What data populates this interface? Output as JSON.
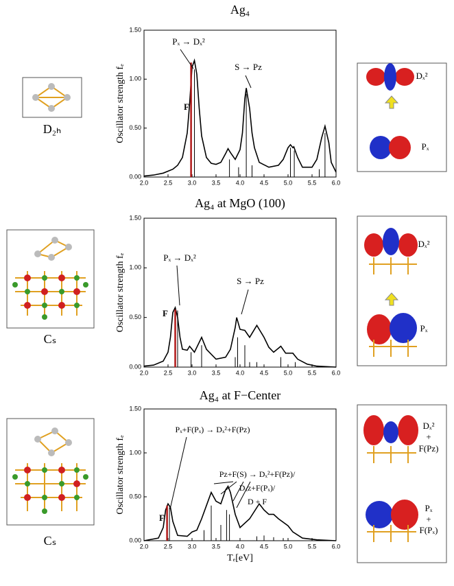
{
  "chart_data": [
    {
      "type": "line",
      "title": "Ag₄",
      "ylabel": "Oscillator strength fₑ",
      "xlim": [
        2,
        6
      ],
      "ylim": [
        0,
        1.5
      ],
      "xticks": [
        {
          "value": 2,
          "label": "2.0"
        },
        {
          "value": 2.5,
          "label": "2.5"
        },
        {
          "value": 3,
          "label": "3.0"
        },
        {
          "value": 3.5,
          "label": "3.5"
        },
        {
          "value": 4,
          "label": "4.0"
        },
        {
          "value": 4.5,
          "label": "4.5"
        },
        {
          "value": 5,
          "label": "5.0"
        },
        {
          "value": 5.5,
          "label": "5.5"
        },
        {
          "value": 6,
          "label": "6.0"
        }
      ],
      "yticks": [
        {
          "value": 0,
          "label": "0.00"
        },
        {
          "value": 0.5,
          "label": "0.50"
        },
        {
          "value": 1,
          "label": "1.00"
        },
        {
          "value": 1.5,
          "label": "1.50"
        }
      ],
      "series": [
        {
          "style": "line",
          "color": "#000000",
          "x": [
            2.0,
            2.2,
            2.4,
            2.6,
            2.7,
            2.8,
            2.9,
            2.95,
            3.0,
            3.05,
            3.1,
            3.15,
            3.2,
            3.3,
            3.4,
            3.5,
            3.6,
            3.7,
            3.75,
            3.8,
            3.9,
            4.0,
            4.05,
            4.1,
            4.13,
            4.2,
            4.25,
            4.3,
            4.4,
            4.6,
            4.8,
            4.9,
            5.0,
            5.05,
            5.1,
            5.12,
            5.2,
            5.3,
            5.5,
            5.6,
            5.7,
            5.77,
            5.85,
            5.9,
            6.0
          ],
          "values": [
            0.01,
            0.02,
            0.04,
            0.08,
            0.12,
            0.2,
            0.45,
            0.75,
            1.12,
            1.19,
            1.05,
            0.7,
            0.42,
            0.2,
            0.14,
            0.13,
            0.15,
            0.24,
            0.29,
            0.25,
            0.18,
            0.28,
            0.45,
            0.8,
            0.91,
            0.7,
            0.45,
            0.3,
            0.15,
            0.1,
            0.12,
            0.18,
            0.3,
            0.33,
            0.3,
            0.31,
            0.2,
            0.1,
            0.1,
            0.18,
            0.4,
            0.52,
            0.35,
            0.15,
            0.05
          ]
        },
        {
          "style": "stick",
          "color": "#b01818",
          "x": [
            2.98
          ],
          "values": [
            1.17
          ]
        },
        {
          "style": "stick",
          "color": "#000000",
          "x": [
            3.05,
            3.78,
            3.97,
            4.13,
            4.25,
            5.05,
            5.13,
            5.65,
            5.77
          ],
          "values": [
            1.1,
            0.18,
            0.1,
            0.85,
            0.12,
            0.3,
            0.27,
            0.08,
            0.45
          ]
        }
      ],
      "annotations": [
        {
          "text": "Pₓ → Dₓ²",
          "color": "#000000"
        },
        {
          "text": "S → Pz",
          "color": "#000000"
        },
        {
          "text": "F",
          "color": "#b01818"
        }
      ]
    },
    {
      "type": "line",
      "title": "Ag₄ at MgO (100)",
      "ylabel": "Oscillator strength fₑ",
      "xlim": [
        2,
        6
      ],
      "ylim": [
        0,
        1.5
      ],
      "xticks": [
        {
          "value": 2,
          "label": "2.0"
        },
        {
          "value": 2.5,
          "label": "2.5"
        },
        {
          "value": 3,
          "label": "3.0"
        },
        {
          "value": 3.5,
          "label": "3.5"
        },
        {
          "value": 4,
          "label": "4.0"
        },
        {
          "value": 4.5,
          "label": "4.5"
        },
        {
          "value": 5,
          "label": "5.0"
        },
        {
          "value": 5.5,
          "label": "5.5"
        },
        {
          "value": 6,
          "label": "6.0"
        }
      ],
      "yticks": [
        {
          "value": 0,
          "label": "0.00"
        },
        {
          "value": 0.5,
          "label": "0.50"
        },
        {
          "value": 1,
          "label": "1.00"
        },
        {
          "value": 1.5,
          "label": "1.50"
        }
      ],
      "series": [
        {
          "style": "line",
          "color": "#000000",
          "x": [
            2.0,
            2.2,
            2.4,
            2.5,
            2.55,
            2.6,
            2.65,
            2.7,
            2.75,
            2.8,
            2.9,
            2.95,
            3.05,
            3.2,
            3.3,
            3.5,
            3.7,
            3.8,
            3.9,
            3.93,
            4.0,
            4.1,
            4.2,
            4.35,
            4.5,
            4.6,
            4.7,
            4.85,
            4.95,
            5.1,
            5.2,
            5.4,
            5.6,
            6.0
          ],
          "values": [
            0.01,
            0.02,
            0.06,
            0.15,
            0.3,
            0.55,
            0.6,
            0.5,
            0.3,
            0.18,
            0.17,
            0.21,
            0.15,
            0.3,
            0.18,
            0.08,
            0.1,
            0.18,
            0.4,
            0.5,
            0.38,
            0.37,
            0.3,
            0.42,
            0.3,
            0.2,
            0.15,
            0.21,
            0.14,
            0.14,
            0.08,
            0.03,
            0.01,
            0.0
          ]
        },
        {
          "style": "stick",
          "color": "#b01818",
          "x": [
            2.65
          ],
          "values": [
            0.58
          ]
        },
        {
          "style": "stick",
          "color": "#000000",
          "x": [
            2.7,
            2.98,
            3.2,
            3.9,
            3.95,
            4.1,
            4.2,
            4.35,
            4.85,
            5.15
          ],
          "values": [
            0.57,
            0.15,
            0.22,
            0.1,
            0.3,
            0.22,
            0.05,
            0.05,
            0.1,
            0.05
          ]
        }
      ],
      "annotations": [
        {
          "text": "Pₓ → Dₓ²",
          "color": "#000000"
        },
        {
          "text": "S → Pz",
          "color": "#000000"
        },
        {
          "text": "F",
          "color": "#b01818"
        }
      ]
    },
    {
      "type": "line",
      "title": "Ag₄ at F−Center",
      "ylabel": "Oscillator strength fₑ",
      "xlabel": "Tₑ[eV]",
      "xlim": [
        2,
        6
      ],
      "ylim": [
        0,
        1.5
      ],
      "xticks": [
        {
          "value": 2,
          "label": "2.0"
        },
        {
          "value": 2.5,
          "label": "2.5"
        },
        {
          "value": 3,
          "label": "3.0"
        },
        {
          "value": 3.5,
          "label": "3.5"
        },
        {
          "value": 4,
          "label": "4.0"
        },
        {
          "value": 4.5,
          "label": "4.5"
        },
        {
          "value": 5,
          "label": "5.0"
        },
        {
          "value": 5.5,
          "label": "5.5"
        },
        {
          "value": 6,
          "label": "6.0"
        }
      ],
      "yticks": [
        {
          "value": 0,
          "label": "0.00"
        },
        {
          "value": 0.5,
          "label": "0.50"
        },
        {
          "value": 1,
          "label": "1.00"
        },
        {
          "value": 1.5,
          "label": "1.50"
        }
      ],
      "series": [
        {
          "style": "line",
          "color": "#000000",
          "x": [
            2.0,
            2.3,
            2.4,
            2.45,
            2.5,
            2.55,
            2.6,
            2.7,
            2.9,
            3.0,
            3.1,
            3.2,
            3.3,
            3.4,
            3.5,
            3.6,
            3.7,
            3.75,
            3.8,
            3.9,
            4.0,
            4.2,
            4.4,
            4.5,
            4.6,
            4.7,
            4.8,
            5.0,
            5.1,
            5.3,
            5.6,
            6.0
          ],
          "values": [
            0.0,
            0.03,
            0.15,
            0.35,
            0.42,
            0.38,
            0.22,
            0.06,
            0.05,
            0.1,
            0.12,
            0.25,
            0.4,
            0.55,
            0.45,
            0.42,
            0.58,
            0.62,
            0.55,
            0.3,
            0.15,
            0.25,
            0.42,
            0.35,
            0.3,
            0.3,
            0.25,
            0.17,
            0.1,
            0.03,
            0.01,
            0.0
          ]
        },
        {
          "style": "stick",
          "color": "#b01818",
          "x": [
            2.48
          ],
          "values": [
            0.4
          ]
        },
        {
          "style": "stick",
          "color": "#000000",
          "x": [
            2.53,
            3.25,
            3.4,
            3.6,
            3.72,
            3.78,
            4.35,
            4.5,
            4.7,
            4.9
          ],
          "values": [
            0.38,
            0.12,
            0.4,
            0.18,
            0.35,
            0.3,
            0.05,
            0.06,
            0.04,
            0.03
          ]
        }
      ],
      "annotations": [
        {
          "text": "Pₓ+F(Pₓ) → Dₓ²+F(Pz)",
          "color": "#000000"
        },
        {
          "text": "Pz+F(S) → Dₓ²+F(Pz)/",
          "color": "#000000"
        },
        {
          "text": "Dₓz+F(Pₓ)/",
          "color": "#000000"
        },
        {
          "text": "D + F",
          "color": "#000000"
        },
        {
          "text": "F",
          "color": "#b01818"
        }
      ]
    }
  ],
  "left_labels": [
    "D₂ₕ",
    "Cₛ",
    "Cₛ"
  ],
  "right_labels": [
    [
      "Dₓ²",
      "Pₓ"
    ],
    [
      "Dₓ²",
      "Pₓ"
    ],
    [
      "Dₓ²",
      "+",
      "F(Pz)",
      "Pₓ",
      "+",
      "F(Pₓ)"
    ]
  ]
}
